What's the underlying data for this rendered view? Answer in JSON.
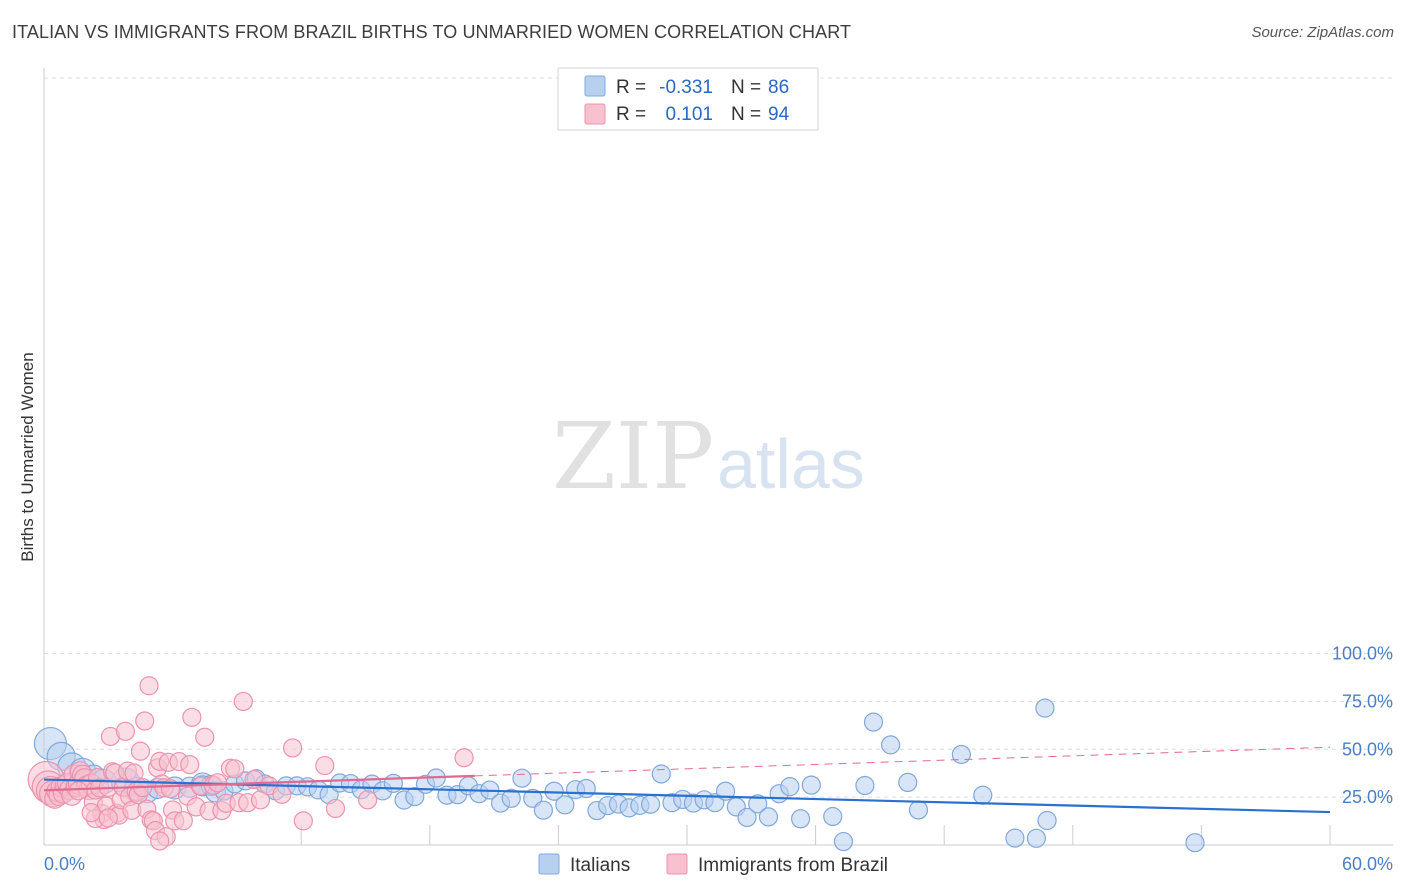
{
  "title": "ITALIAN VS IMMIGRANTS FROM BRAZIL BIRTHS TO UNMARRIED WOMEN CORRELATION CHART",
  "source": "Source: ZipAtlas.com",
  "watermark": {
    "zip": "ZIP",
    "atlas": "atlas"
  },
  "colors": {
    "blue_fill": "#b8d0f0",
    "blue_stroke": "#7fa8dc",
    "blue_line": "#2a70d0",
    "pink_fill": "#f7c1d0",
    "pink_stroke": "#ec93ad",
    "pink_line": "#e06a92",
    "tick": "#4a7fc8"
  },
  "legend": {
    "rows": [
      {
        "r_label": "R =",
        "r_value": "-0.331",
        "n_label": "N =",
        "n_value": "86"
      },
      {
        "r_label": "R =",
        "r_value": "0.101",
        "n_label": "N =",
        "n_value": "94"
      }
    ]
  },
  "chart_data": {
    "type": "scatter",
    "ylabel": "Births to Unmarried Women",
    "xlabel": "",
    "xlim": [
      0,
      60
    ],
    "ylim": [
      0,
      105
    ],
    "x_tick_labels": [
      "0.0%",
      "60.0%"
    ],
    "y_ticks": [
      25,
      50,
      75,
      100
    ],
    "y_tick_labels": [
      "25.0%",
      "50.0%",
      "75.0%",
      "100.0%"
    ],
    "grid": true,
    "legend_position": "top-center",
    "series": [
      {
        "name": "Italians",
        "r": -0.331,
        "n": 86,
        "trend": {
          "x0": 0,
          "y0": 34.2,
          "x1": 60,
          "y1": 17.2
        },
        "points": [
          [
            0.3,
            53,
            16
          ],
          [
            0.8,
            46.3,
            14
          ],
          [
            1.3,
            40.8,
            14
          ],
          [
            1.8,
            38.5,
            13
          ],
          [
            2.3,
            35.5,
            12
          ],
          [
            2.8,
            33.2,
            12
          ],
          [
            3.8,
            32.9,
            14
          ],
          [
            4.3,
            29.1,
            12
          ],
          [
            4.8,
            27.8,
            11
          ],
          [
            5.3,
            29.6,
            10
          ],
          [
            6.1,
            29.8,
            11
          ],
          [
            6.8,
            30.2,
            10
          ],
          [
            7.4,
            31.9,
            11
          ],
          [
            7.4,
            30.9,
            10
          ],
          [
            7.8,
            31.1,
            10
          ],
          [
            8.0,
            27.7,
            10
          ],
          [
            8.4,
            28.2,
            9
          ],
          [
            8.9,
            31.9,
            9
          ],
          [
            9.4,
            33.5,
            9
          ],
          [
            9.9,
            34.6,
            9
          ],
          [
            10.3,
            31.9,
            9
          ],
          [
            10.8,
            28.3,
            9
          ],
          [
            11.3,
            30.9,
            9
          ],
          [
            11.8,
            30.9,
            9
          ],
          [
            12.3,
            30.4,
            9
          ],
          [
            12.8,
            28.8,
            9
          ],
          [
            13.3,
            26.3,
            9
          ],
          [
            13.8,
            32.4,
            9
          ],
          [
            14.3,
            32.1,
            9
          ],
          [
            14.8,
            28.9,
            9
          ],
          [
            15.3,
            31.8,
            9
          ],
          [
            15.8,
            28.3,
            9
          ],
          [
            16.3,
            32.2,
            9
          ],
          [
            16.8,
            23.5,
            9
          ],
          [
            17.3,
            25.3,
            9
          ],
          [
            17.8,
            31.7,
            9
          ],
          [
            18.3,
            35,
            9
          ],
          [
            18.8,
            26,
            9
          ],
          [
            19.3,
            26.3,
            9
          ],
          [
            19.8,
            30.9,
            9
          ],
          [
            20.3,
            26.8,
            9
          ],
          [
            20.8,
            28.7,
            9
          ],
          [
            21.3,
            21.9,
            9
          ],
          [
            21.8,
            24.4,
            9
          ],
          [
            22.3,
            34.9,
            9
          ],
          [
            22.8,
            24.4,
            9
          ],
          [
            23.3,
            18.2,
            9
          ],
          [
            23.8,
            28.1,
            9
          ],
          [
            24.3,
            21,
            9
          ],
          [
            24.8,
            28.9,
            9
          ],
          [
            25.3,
            29.5,
            9
          ],
          [
            25.8,
            18,
            9
          ],
          [
            26.3,
            20.6,
            9
          ],
          [
            26.8,
            21.4,
            9
          ],
          [
            27.3,
            19.4,
            9
          ],
          [
            27.8,
            20.7,
            9
          ],
          [
            28.3,
            21.3,
            9
          ],
          [
            28.8,
            37.1,
            9
          ],
          [
            29.3,
            22.1,
            9
          ],
          [
            29.8,
            23.8,
            9
          ],
          [
            30.3,
            21.9,
            9
          ],
          [
            30.8,
            23.6,
            9
          ],
          [
            31.3,
            22.1,
            9
          ],
          [
            31.8,
            28.1,
            9
          ],
          [
            32.3,
            19.9,
            9
          ],
          [
            32.8,
            14.4,
            9
          ],
          [
            33.3,
            21.5,
            9
          ],
          [
            33.8,
            14.7,
            9
          ],
          [
            34.3,
            26.8,
            9
          ],
          [
            34.8,
            30.5,
            9
          ],
          [
            35.3,
            13.7,
            9
          ],
          [
            35.8,
            31.3,
            9
          ],
          [
            36.8,
            14.9,
            9
          ],
          [
            37.3,
            1.8,
            9
          ],
          [
            38.3,
            31.1,
            9
          ],
          [
            38.7,
            64.2,
            9
          ],
          [
            39.5,
            52.3,
            9
          ],
          [
            40.3,
            32.7,
            9
          ],
          [
            40.8,
            18.3,
            9
          ],
          [
            42.8,
            47.3,
            9
          ],
          [
            43.8,
            26,
            9
          ],
          [
            45.3,
            3.6,
            9
          ],
          [
            46.3,
            3.5,
            9
          ],
          [
            46.7,
            71.5,
            9
          ],
          [
            46.8,
            12.8,
            9
          ],
          [
            53.7,
            1.2,
            9
          ]
        ]
      },
      {
        "name": "Immigrants from Brazil",
        "r": 0.101,
        "n": 94,
        "trend_solid": {
          "x0": 0,
          "y0": 28.6,
          "x1": 20.1,
          "y1": 36.1
        },
        "trend_dashed": {
          "x0": 20.1,
          "y0": 36.1,
          "x1": 60,
          "y1": 51.1
        },
        "points": [
          [
            0.1,
            34.2,
            18
          ],
          [
            0.2,
            30.3,
            16
          ],
          [
            0.3,
            28.5,
            14
          ],
          [
            0.4,
            26.8,
            13
          ],
          [
            0.5,
            24.4,
            10
          ],
          [
            0.6,
            28.1,
            10
          ],
          [
            0.7,
            25.9,
            10
          ],
          [
            0.8,
            30.4,
            10
          ],
          [
            0.9,
            27.1,
            10
          ],
          [
            1.0,
            31.4,
            10
          ],
          [
            1.1,
            32.2,
            10
          ],
          [
            1.2,
            29,
            10
          ],
          [
            1.3,
            26,
            10
          ],
          [
            1.4,
            36.7,
            10
          ],
          [
            1.5,
            30.5,
            10
          ],
          [
            1.6,
            31.9,
            10
          ],
          [
            1.7,
            38.3,
            10
          ],
          [
            1.8,
            36.5,
            10
          ],
          [
            1.9,
            34.6,
            10
          ],
          [
            2.0,
            30.9,
            10
          ],
          [
            2.1,
            28.9,
            10
          ],
          [
            2.2,
            31.8,
            10
          ],
          [
            2.3,
            22.3,
            9
          ],
          [
            2.4,
            28.7,
            9
          ],
          [
            2.5,
            35.2,
            9
          ],
          [
            2.6,
            29.8,
            9
          ],
          [
            2.7,
            16.4,
            9
          ],
          [
            2.8,
            13.3,
            9
          ],
          [
            2.9,
            20.3,
            9
          ],
          [
            3.0,
            30.1,
            9
          ],
          [
            3.1,
            56.7,
            9
          ],
          [
            3.2,
            38.3,
            9
          ],
          [
            3.3,
            37.7,
            9
          ],
          [
            3.4,
            16.6,
            9
          ],
          [
            3.5,
            15.6,
            9
          ],
          [
            3.6,
            23.6,
            9
          ],
          [
            3.7,
            30.1,
            9
          ],
          [
            3.8,
            59.4,
            9
          ],
          [
            3.9,
            38.6,
            9
          ],
          [
            4.0,
            25.3,
            9
          ],
          [
            4.1,
            18.1,
            9
          ],
          [
            4.2,
            37.6,
            9
          ],
          [
            4.3,
            28,
            9
          ],
          [
            4.4,
            26.3,
            9
          ],
          [
            4.5,
            49,
            9
          ],
          [
            4.6,
            30,
            9
          ],
          [
            4.7,
            64.8,
            9
          ],
          [
            4.8,
            18.7,
            9
          ],
          [
            4.9,
            83.2,
            9
          ],
          [
            5.0,
            13.1,
            9
          ],
          [
            5.1,
            12.6,
            9
          ],
          [
            5.2,
            7.5,
            9
          ],
          [
            5.3,
            40.3,
            9
          ],
          [
            5.4,
            43.7,
            9
          ],
          [
            5.5,
            31.9,
            9
          ],
          [
            5.6,
            29.9,
            9
          ],
          [
            5.7,
            4.3,
            9
          ],
          [
            5.8,
            43.2,
            9
          ],
          [
            5.9,
            29.4,
            9
          ],
          [
            6.0,
            18.3,
            9
          ],
          [
            6.1,
            12.6,
            9
          ],
          [
            6.3,
            43.6,
            9
          ],
          [
            6.5,
            12.7,
            9
          ],
          [
            6.7,
            25.5,
            9
          ],
          [
            6.8,
            42,
            9
          ],
          [
            6.9,
            66.7,
            9
          ],
          [
            7.1,
            19.9,
            9
          ],
          [
            7.3,
            30.8,
            9
          ],
          [
            7.5,
            56.3,
            9
          ],
          [
            7.7,
            17.8,
            9
          ],
          [
            7.9,
            31.2,
            9
          ],
          [
            8.1,
            32.5,
            9
          ],
          [
            8.3,
            18,
            9
          ],
          [
            8.5,
            21.8,
            9
          ],
          [
            8.7,
            40.1,
            9
          ],
          [
            8.9,
            39.8,
            9
          ],
          [
            9.1,
            22.1,
            9
          ],
          [
            9.3,
            75,
            9
          ],
          [
            9.5,
            22.1,
            9
          ],
          [
            9.8,
            34.2,
            9
          ],
          [
            10.1,
            23.6,
            9
          ],
          [
            10.5,
            30.9,
            9
          ],
          [
            11.1,
            26.5,
            9
          ],
          [
            11.6,
            50.7,
            9
          ],
          [
            12.1,
            12.6,
            9
          ],
          [
            13.1,
            41.5,
            9
          ],
          [
            13.6,
            19.1,
            9
          ],
          [
            15.1,
            23.6,
            9
          ],
          [
            19.6,
            45.6,
            9
          ],
          [
            2.4,
            13.8,
            9
          ],
          [
            3.0,
            14.1,
            9
          ],
          [
            5.4,
            2.1,
            9
          ],
          [
            2.2,
            16.9,
            9
          ],
          [
            1.6,
            28.3,
            9
          ]
        ]
      }
    ]
  },
  "bottom_legend": [
    {
      "label": "Italians"
    },
    {
      "label": "Immigrants from Brazil"
    }
  ]
}
